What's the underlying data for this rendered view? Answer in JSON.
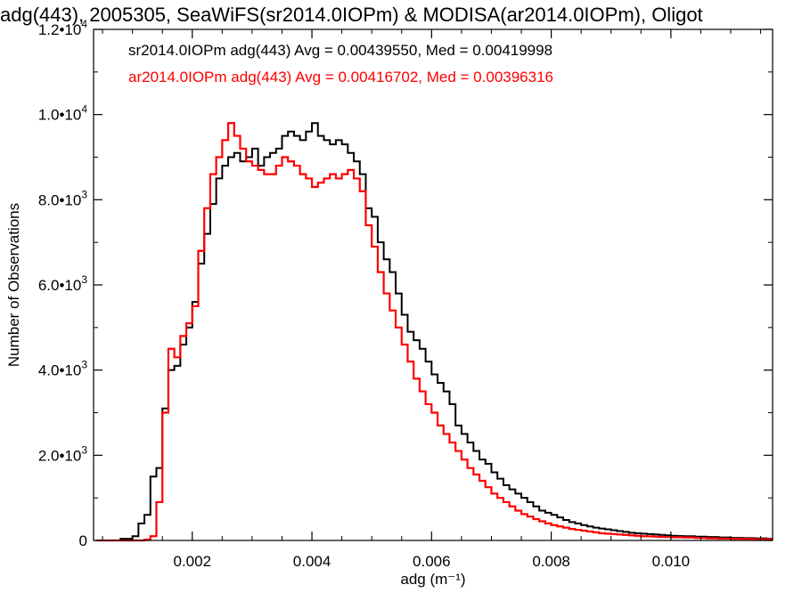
{
  "chart_data": {
    "type": "line",
    "title": "adg(443), 2005305, SeaWiFS(sr2014.0IOPm) & MODISA(ar2014.0IOPm), Oligot",
    "xlabel": "adg (m⁻¹)",
    "ylabel": "Number of Observations",
    "xlim": [
      0.00035,
      0.0117
    ],
    "ylim": [
      0,
      12000
    ],
    "x_ticks": [
      {
        "value": 0.002,
        "label": "0.002"
      },
      {
        "value": 0.004,
        "label": "0.004"
      },
      {
        "value": 0.006,
        "label": "0.006"
      },
      {
        "value": 0.008,
        "label": "0.008"
      },
      {
        "value": 0.01,
        "label": "0.010"
      }
    ],
    "y_ticks": [
      {
        "value": 0,
        "mantissa": "0",
        "exponent": ""
      },
      {
        "value": 2000,
        "mantissa": "2.0•10",
        "exponent": "3"
      },
      {
        "value": 4000,
        "mantissa": "4.0•10",
        "exponent": "3"
      },
      {
        "value": 6000,
        "mantissa": "6.0•10",
        "exponent": "3"
      },
      {
        "value": 8000,
        "mantissa": "8.0•10",
        "exponent": "3"
      },
      {
        "value": 10000,
        "mantissa": "1.0•10",
        "exponent": "4"
      },
      {
        "value": 12000,
        "mantissa": "1.2•10",
        "exponent": "4"
      }
    ],
    "grid": false,
    "legend_placement": "top-left",
    "series": [
      {
        "name": "sr2014.0IOPm adg(443) Avg = 0.00439550, Med = 0.00419998",
        "color": "#000000",
        "style": "step",
        "x": [
          0.0004,
          0.0008,
          0.001,
          0.0011,
          0.0012,
          0.0013,
          0.0014,
          0.0015,
          0.0016,
          0.0017,
          0.0018,
          0.0019,
          0.002,
          0.0021,
          0.0022,
          0.0023,
          0.0024,
          0.0025,
          0.0026,
          0.0027,
          0.0028,
          0.0029,
          0.003,
          0.0031,
          0.0032,
          0.0033,
          0.0034,
          0.0035,
          0.0036,
          0.0037,
          0.0038,
          0.0039,
          0.004,
          0.0041,
          0.0042,
          0.0043,
          0.0044,
          0.0045,
          0.0046,
          0.0047,
          0.0048,
          0.0049,
          0.005,
          0.0051,
          0.0052,
          0.0053,
          0.0054,
          0.0055,
          0.0056,
          0.0057,
          0.0058,
          0.0059,
          0.006,
          0.0061,
          0.0062,
          0.0063,
          0.0064,
          0.0065,
          0.0066,
          0.0067,
          0.0068,
          0.0069,
          0.007,
          0.0071,
          0.0072,
          0.0073,
          0.0074,
          0.0075,
          0.0076,
          0.0077,
          0.0078,
          0.0079,
          0.008,
          0.0081,
          0.0082,
          0.0083,
          0.0084,
          0.0085,
          0.0086,
          0.0087,
          0.0088,
          0.0089,
          0.009,
          0.0091,
          0.0092,
          0.0093,
          0.0094,
          0.0095,
          0.0096,
          0.0097,
          0.0098,
          0.0099,
          0.01,
          0.0101,
          0.0102,
          0.0104,
          0.0106,
          0.0108,
          0.011,
          0.0112,
          0.0114,
          0.0116
        ],
        "y": [
          0,
          40,
          100,
          400,
          600,
          1500,
          1700,
          3100,
          4000,
          4100,
          4600,
          5000,
          5600,
          6500,
          7200,
          7900,
          8500,
          8800,
          9000,
          9100,
          8900,
          9000,
          9200,
          8800,
          9000,
          9100,
          9200,
          9500,
          9600,
          9500,
          9400,
          9600,
          9800,
          9500,
          9400,
          9300,
          9400,
          9300,
          9100,
          8900,
          8600,
          7800,
          7600,
          7000,
          6600,
          6300,
          5800,
          5300,
          4900,
          4700,
          4500,
          4200,
          3900,
          3700,
          3500,
          3200,
          2700,
          2500,
          2300,
          2100,
          1900,
          1800,
          1600,
          1450,
          1300,
          1200,
          1100,
          1000,
          900,
          800,
          700,
          650,
          600,
          540,
          480,
          430,
          400,
          360,
          330,
          300,
          280,
          260,
          240,
          220,
          200,
          180,
          170,
          160,
          150,
          140,
          130,
          120,
          110,
          105,
          100,
          90,
          80,
          70,
          60,
          55,
          50,
          40
        ]
      },
      {
        "name": "ar2014.0IOPm adg(443) Avg = 0.00416702, Med = 0.00396316",
        "color": "#ff0000",
        "style": "step",
        "x": [
          0.0004,
          0.001,
          0.0012,
          0.0013,
          0.0014,
          0.0015,
          0.0016,
          0.0017,
          0.0018,
          0.0019,
          0.002,
          0.0021,
          0.0022,
          0.0023,
          0.0024,
          0.0025,
          0.0026,
          0.0027,
          0.0028,
          0.0029,
          0.003,
          0.0031,
          0.0032,
          0.0033,
          0.0034,
          0.0035,
          0.0036,
          0.0037,
          0.0038,
          0.0039,
          0.004,
          0.0041,
          0.0042,
          0.0043,
          0.0044,
          0.0045,
          0.0046,
          0.0047,
          0.0048,
          0.0049,
          0.005,
          0.0051,
          0.0052,
          0.0053,
          0.0054,
          0.0055,
          0.0056,
          0.0057,
          0.0058,
          0.0059,
          0.006,
          0.0061,
          0.0062,
          0.0063,
          0.0064,
          0.0065,
          0.0066,
          0.0067,
          0.0068,
          0.0069,
          0.007,
          0.0071,
          0.0072,
          0.0073,
          0.0074,
          0.0075,
          0.0076,
          0.0077,
          0.0078,
          0.0079,
          0.008,
          0.0081,
          0.0082,
          0.0083,
          0.0084,
          0.0085,
          0.0086,
          0.0087,
          0.0088,
          0.0089,
          0.009,
          0.0091,
          0.0092,
          0.0093,
          0.0094,
          0.0095,
          0.0096,
          0.0097,
          0.0098,
          0.0099,
          0.01,
          0.0102,
          0.0104,
          0.0106,
          0.0108,
          0.011,
          0.0112,
          0.0114,
          0.0116
        ],
        "y": [
          0,
          0,
          20,
          100,
          900,
          3000,
          4500,
          4300,
          4800,
          5100,
          5500,
          6800,
          7800,
          8600,
          9000,
          9400,
          9800,
          9500,
          9200,
          8900,
          8800,
          8700,
          8600,
          8600,
          8800,
          9000,
          8900,
          8800,
          8600,
          8500,
          8300,
          8400,
          8500,
          8600,
          8500,
          8600,
          8700,
          8500,
          8200,
          7400,
          6900,
          6300,
          5800,
          5400,
          5000,
          4600,
          4200,
          3800,
          3500,
          3200,
          3000,
          2700,
          2500,
          2300,
          2100,
          1900,
          1700,
          1550,
          1400,
          1250,
          1100,
          1000,
          900,
          800,
          700,
          620,
          560,
          500,
          450,
          400,
          360,
          330,
          300,
          270,
          250,
          230,
          210,
          190,
          170,
          160,
          150,
          140,
          130,
          120,
          110,
          100,
          95,
          90,
          85,
          80,
          75,
          70,
          60,
          50,
          45,
          40,
          35,
          30,
          25
        ]
      }
    ]
  }
}
